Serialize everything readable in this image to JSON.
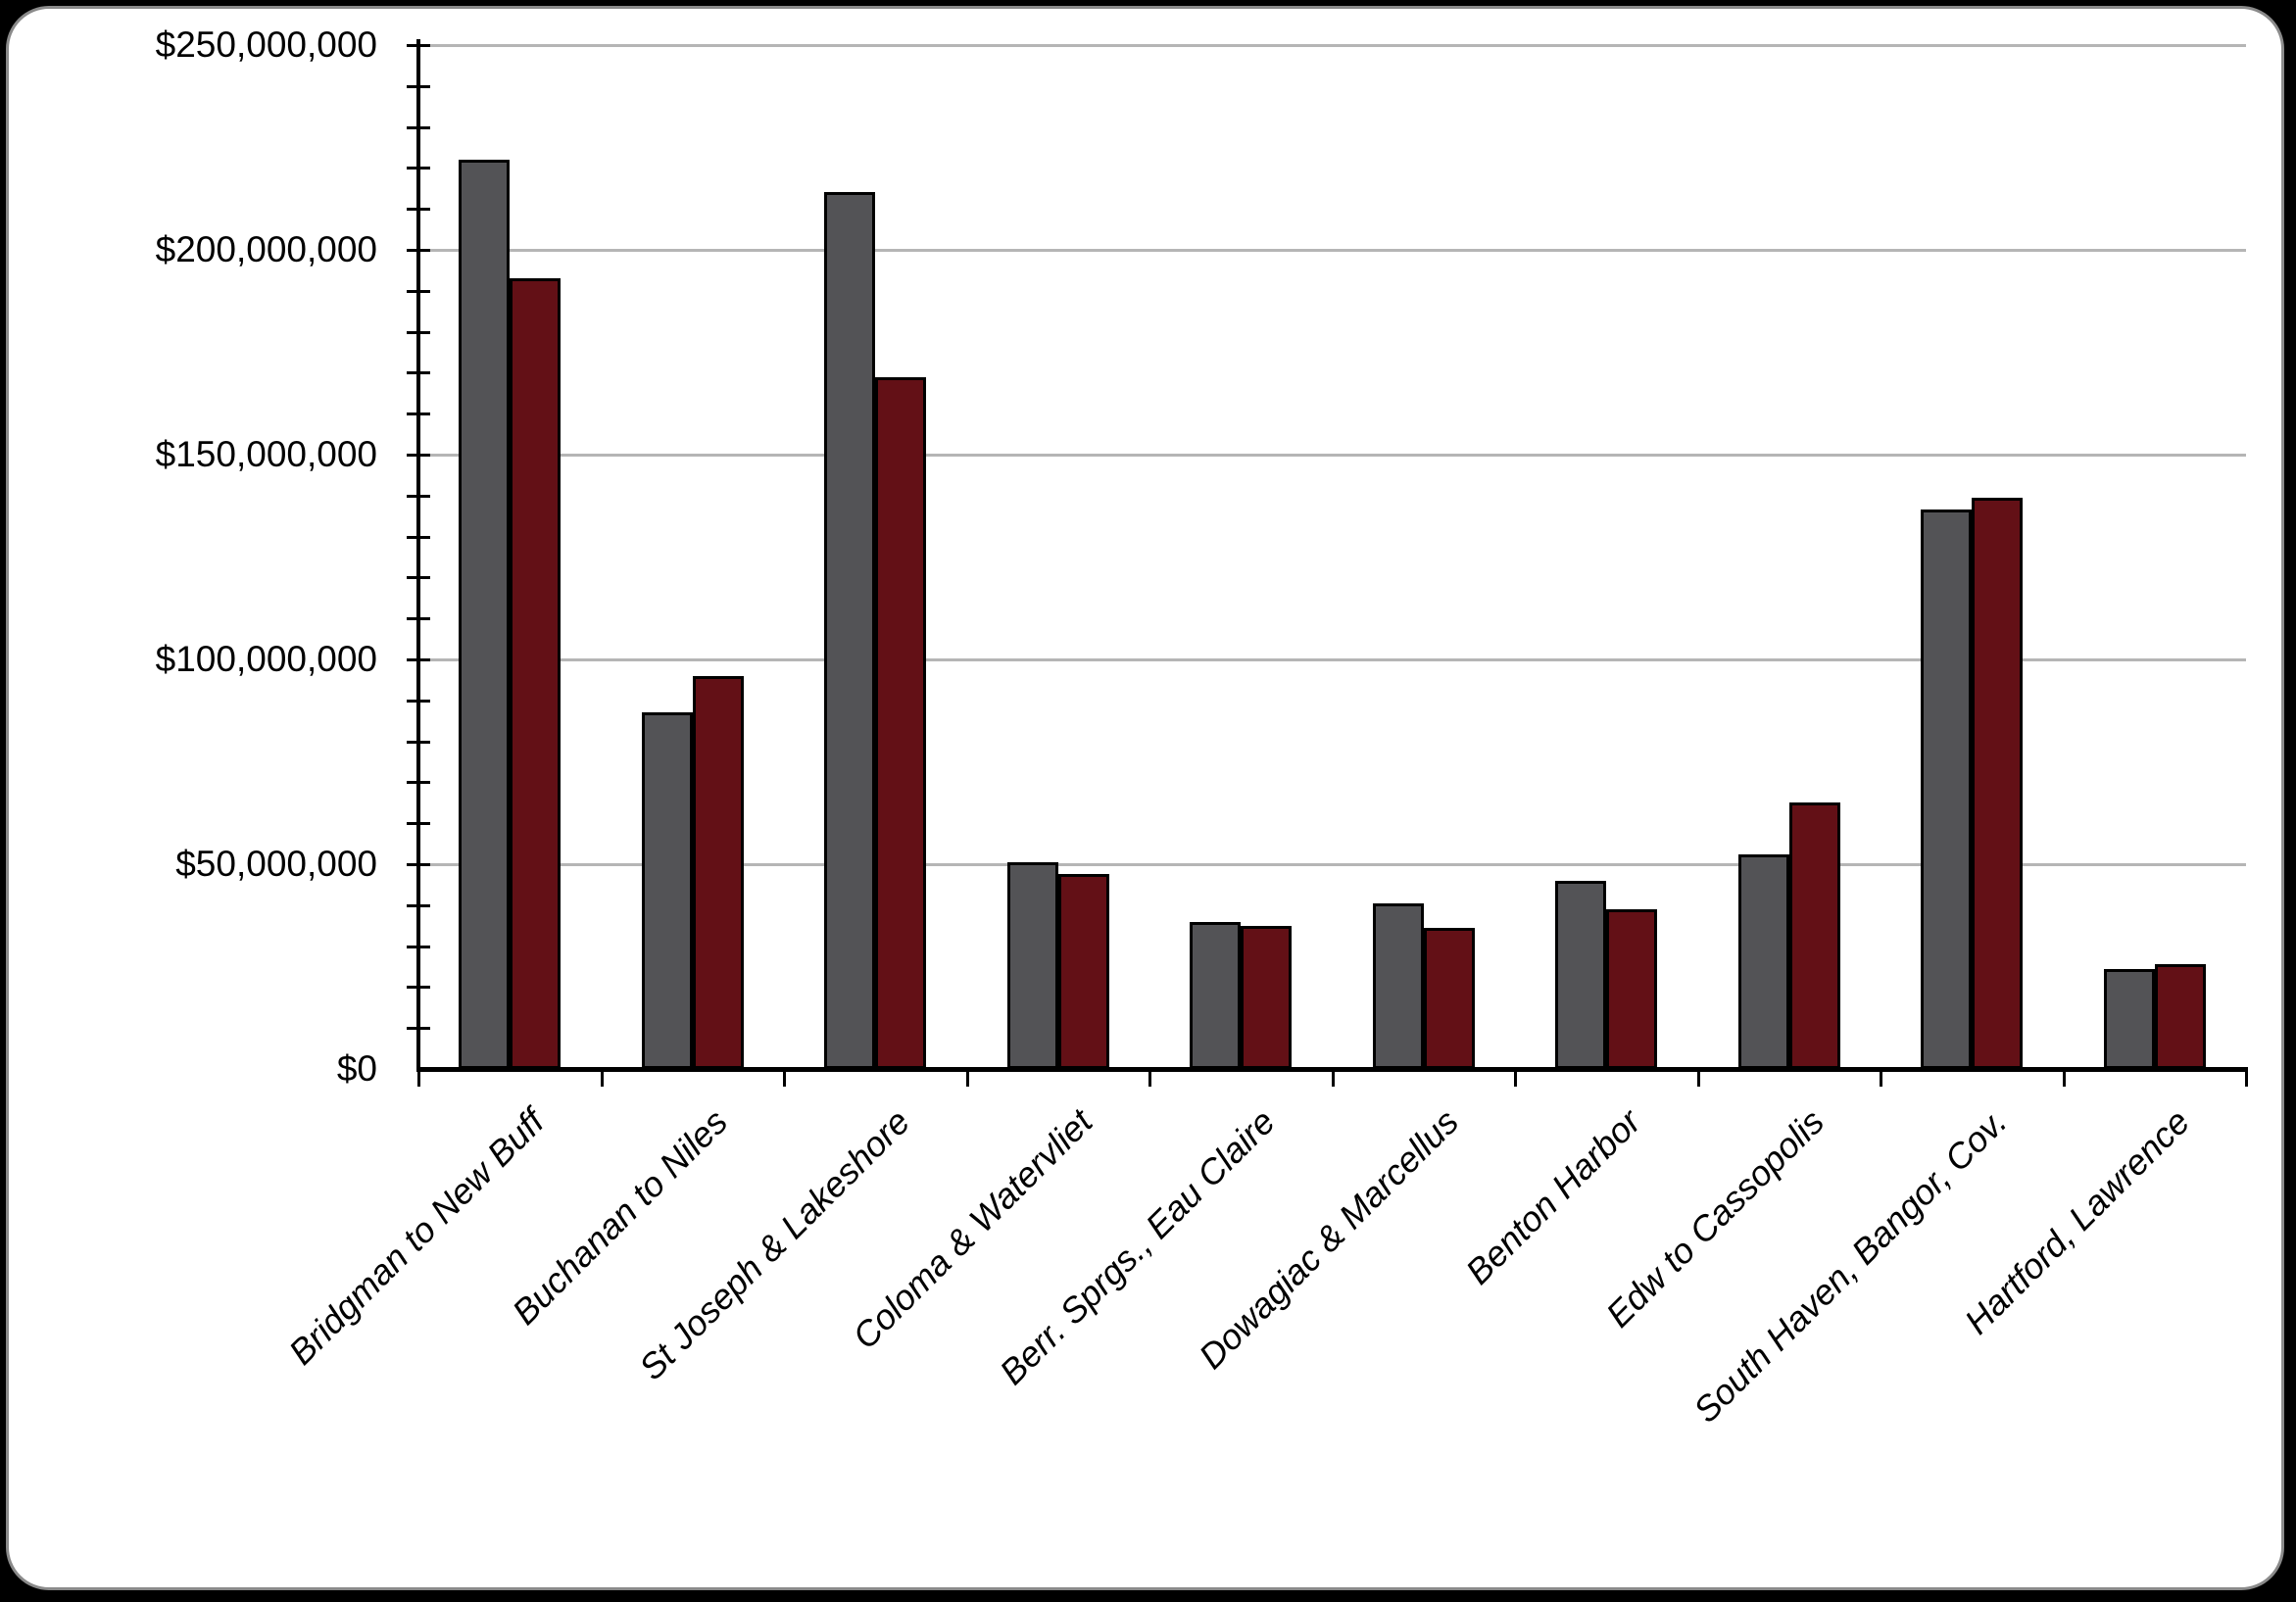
{
  "page": {
    "background_color": "#000000",
    "canvas_color": "#ffffff",
    "canvas_border_color": "#8a8a8a"
  },
  "chart_data": {
    "type": "bar",
    "title": "",
    "xlabel": "",
    "ylabel": "",
    "legend": "none",
    "grid": "major horizontal gridlines",
    "gridline_color": "#b5b5b5",
    "bar_outline_color": "#000000",
    "categories": [
      "Bridgman to New Buff",
      "Buchanan to Niles",
      "St Joseph & Lakeshore",
      "Coloma & Watervliet",
      "Berr. Sprgs., Eau Claire",
      "Dowagiac & Marcellus",
      "Benton Harbor",
      "Edw to Cassopolis",
      "South Haven, Bangor, Cov.",
      "Hartford, Lawrence"
    ],
    "series": [
      {
        "color": "#535356",
        "values": [
          222000000,
          87000000,
          214000000,
          50500000,
          36000000,
          40500000,
          46000000,
          52500000,
          136500000,
          24500000
        ]
      },
      {
        "color": "#631016",
        "values": [
          193000000,
          96000000,
          169000000,
          47500000,
          35000000,
          34500000,
          39000000,
          65000000,
          139500000,
          25500000
        ]
      }
    ],
    "y_axis": {
      "min": 0,
      "max": 250000000,
      "major_step": 50000000,
      "minor_step": 10000000,
      "tick_labels": [
        "$0",
        "$50,000,000",
        "$100,000,000",
        "$150,000,000",
        "$200,000,000",
        "$250,000,000"
      ]
    }
  }
}
